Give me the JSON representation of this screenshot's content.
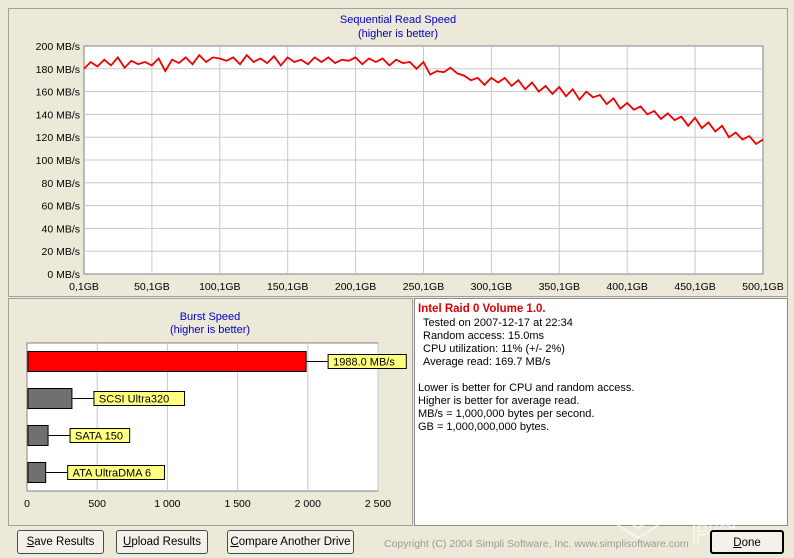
{
  "colors": {
    "series": "#ee0000",
    "title": "#0000cc",
    "bar_main": "#ff0000",
    "bar_other": "#707070",
    "label_bg": "#ffff80",
    "info_title": "#e00000"
  },
  "sequential": {
    "title": "Sequential Read Speed",
    "subtitle": "(higher is better)"
  },
  "burst": {
    "title": "Burst Speed",
    "subtitle": "(higher is better)"
  },
  "info": {
    "title": "Intel Raid 0 Volume 1.0.",
    "tested": "Tested on 2007-12-17 at 22:34",
    "random_access": "Random access: 15.0ms",
    "cpu": "CPU utilization: 11% (+/- 2%)",
    "average": "Average read: 169.7 MB/s",
    "note1": "Lower is better for CPU and random access.",
    "note2": "Higher is better for average read.",
    "note3": "MB/s = 1,000,000 bytes per second.",
    "note4": "GB = 1,000,000,000 bytes."
  },
  "buttons": {
    "save": {
      "u": "S",
      "rest": "ave Results"
    },
    "upload": {
      "u": "U",
      "rest": "pload Results"
    },
    "compare": {
      "u": "C",
      "rest": "ompare Another Drive"
    },
    "done": {
      "u": "D",
      "rest": "one"
    }
  },
  "copyright": "Copyright (C) 2004 Simpli Software, Inc. www.simplisoftware.com",
  "logo_text": "PURE PC",
  "chart_data": [
    {
      "type": "line",
      "title": "Sequential Read Speed",
      "subtitle": "(higher is better)",
      "xlabel": "",
      "ylabel": "",
      "x_tick_labels": [
        "0,1GB",
        "50,1GB",
        "100,1GB",
        "150,1GB",
        "200,1GB",
        "250,1GB",
        "300,1GB",
        "350,1GB",
        "400,1GB",
        "450,1GB",
        "500,1GB"
      ],
      "y_tick_labels": [
        "0 MB/s",
        "20 MB/s",
        "40 MB/s",
        "60 MB/s",
        "80 MB/s",
        "100 MB/s",
        "120 MB/s",
        "140 MB/s",
        "160 MB/s",
        "180 MB/s",
        "200 MB/s"
      ],
      "xlim": [
        0.1,
        500.1
      ],
      "ylim": [
        0,
        200
      ],
      "grid": true,
      "series": [
        {
          "x": [
            0.1,
            5,
            10,
            15,
            20,
            25,
            30,
            35,
            40,
            45,
            50,
            55,
            60,
            65,
            70,
            75,
            80,
            85,
            90,
            95,
            100,
            105,
            110,
            115,
            120,
            125,
            130,
            135,
            140,
            145,
            150,
            155,
            160,
            165,
            170,
            175,
            180,
            185,
            190,
            195,
            200,
            205,
            210,
            215,
            220,
            225,
            230,
            235,
            240,
            245,
            250,
            255,
            260,
            265,
            270,
            275,
            280,
            285,
            290,
            295,
            300,
            305,
            310,
            315,
            320,
            325,
            330,
            335,
            340,
            345,
            350,
            355,
            360,
            365,
            370,
            375,
            380,
            385,
            390,
            395,
            400,
            405,
            410,
            415,
            420,
            425,
            430,
            435,
            440,
            445,
            450,
            455,
            460,
            465,
            470,
            475,
            480,
            485,
            490,
            495,
            500.1
          ],
          "y": [
            180,
            186,
            182,
            188,
            183,
            190,
            181,
            187,
            184,
            186,
            183,
            189,
            178,
            188,
            185,
            190,
            184,
            192,
            186,
            190,
            189,
            187,
            190,
            184,
            192,
            186,
            189,
            185,
            191,
            183,
            190,
            186,
            188,
            184,
            190,
            186,
            190,
            185,
            188,
            187,
            190,
            184,
            189,
            186,
            189,
            183,
            188,
            185,
            186,
            180,
            186,
            175,
            178,
            177,
            181,
            176,
            174,
            170,
            172,
            166,
            172,
            168,
            172,
            165,
            170,
            162,
            168,
            160,
            165,
            158,
            164,
            156,
            162,
            153,
            160,
            155,
            157,
            149,
            154,
            145,
            150,
            144,
            147,
            140,
            143,
            136,
            141,
            135,
            138,
            130,
            137,
            128,
            133,
            125,
            130,
            120,
            124,
            118,
            121,
            114,
            118
          ]
        }
      ]
    },
    {
      "type": "bar",
      "orientation": "horizontal",
      "title": "Burst Speed",
      "subtitle": "(higher is better)",
      "xlim": [
        0,
        2500
      ],
      "x_tick_labels": [
        "0",
        "500",
        "1 000",
        "1 500",
        "2 000",
        "2 500"
      ],
      "grid": true,
      "categories": [
        "1988.0 MB/s",
        "SCSI Ultra320",
        "SATA 150",
        "ATA UltraDMA 6"
      ],
      "values": [
        1988,
        320,
        150,
        133
      ]
    }
  ]
}
